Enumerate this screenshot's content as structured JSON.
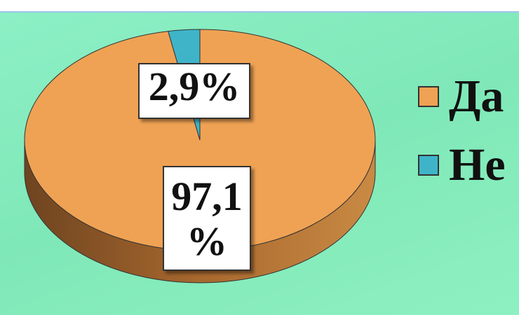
{
  "chart_data": {
    "type": "pie",
    "categories": [
      "Да",
      "Не"
    ],
    "values": [
      97.1,
      2.9
    ],
    "value_labels": [
      "97,1 %",
      "2,9%"
    ],
    "colors": [
      "#efa253",
      "#3fb4c9"
    ],
    "legend": "right"
  }
}
